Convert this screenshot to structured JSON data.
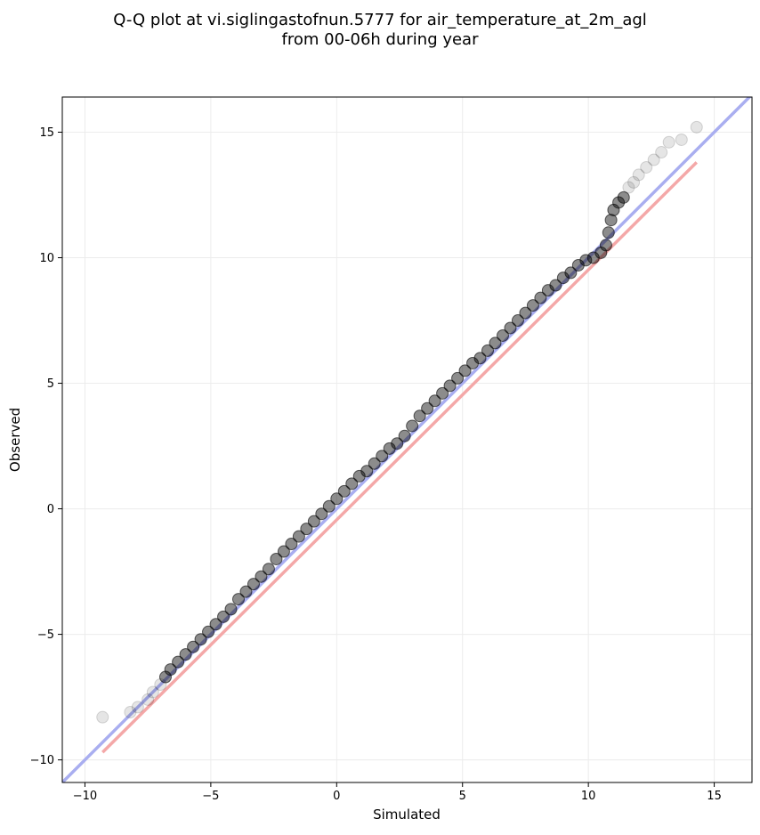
{
  "chart_data": {
    "type": "scatter",
    "title_lines": [
      "Q-Q plot at vi.siglingastofnun.5777 for air_temperature_at_2m_agl",
      "from 00-06h during year"
    ],
    "xlabel": "Simulated",
    "ylabel": "Observed",
    "xlim": [
      -10.9,
      16.5
    ],
    "ylim": [
      -10.9,
      16.4
    ],
    "xticks": [
      -10,
      -5,
      0,
      5,
      10,
      15
    ],
    "yticks": [
      -10,
      -5,
      0,
      5,
      10,
      15
    ],
    "xtick_labels": [
      "−10",
      "−5",
      "0",
      "5",
      "10",
      "15"
    ],
    "ytick_labels": [
      "−10",
      "−5",
      "0",
      "5",
      "10",
      "15"
    ],
    "grid": true,
    "reference_lines": [
      {
        "color": "#a9aef0",
        "x": [
          -10.9,
          16.5
        ],
        "y": [
          -10.9,
          16.5
        ]
      },
      {
        "color": "#f4a8a8",
        "x": [
          -9.3,
          14.3
        ],
        "y": [
          -9.7,
          13.8
        ]
      }
    ],
    "series": [
      {
        "color": "#000000",
        "x": [
          -9.3,
          -8.2,
          -7.9,
          -7.5,
          -7.3,
          -7.0,
          -6.8,
          -6.6,
          -6.3,
          -6.0,
          -5.7,
          -5.4,
          -5.1,
          -4.8,
          -4.5,
          -4.2,
          -3.9,
          -3.6,
          -3.3,
          -3.0,
          -2.7,
          -2.4,
          -2.1,
          -1.8,
          -1.5,
          -1.2,
          -0.9,
          -0.6,
          -0.3,
          0.0,
          0.3,
          0.6,
          0.9,
          1.2,
          1.5,
          1.8,
          2.1,
          2.4,
          2.7,
          3.0,
          3.3,
          3.6,
          3.9,
          4.2,
          4.5,
          4.8,
          5.1,
          5.4,
          5.7,
          6.0,
          6.3,
          6.6,
          6.9,
          7.2,
          7.5,
          7.8,
          8.1,
          8.4,
          8.7,
          9.0,
          9.3,
          9.6,
          9.9,
          10.2,
          10.5,
          10.7,
          10.8,
          10.9,
          11.0,
          11.2,
          11.4,
          11.6,
          11.8,
          12.0,
          12.3,
          12.6,
          12.9,
          13.2,
          13.7,
          14.3
        ],
        "y": [
          -8.3,
          -8.1,
          -7.9,
          -7.6,
          -7.3,
          -7.0,
          -6.7,
          -6.4,
          -6.1,
          -5.8,
          -5.5,
          -5.2,
          -4.9,
          -4.6,
          -4.3,
          -4.0,
          -3.6,
          -3.3,
          -3.0,
          -2.7,
          -2.4,
          -2.0,
          -1.7,
          -1.4,
          -1.1,
          -0.8,
          -0.5,
          -0.2,
          0.1,
          0.4,
          0.7,
          1.0,
          1.3,
          1.5,
          1.8,
          2.1,
          2.4,
          2.6,
          2.9,
          3.3,
          3.7,
          4.0,
          4.3,
          4.6,
          4.9,
          5.2,
          5.5,
          5.8,
          6.0,
          6.3,
          6.6,
          6.9,
          7.2,
          7.5,
          7.8,
          8.1,
          8.4,
          8.7,
          8.9,
          9.2,
          9.4,
          9.7,
          9.9,
          10.0,
          10.2,
          10.5,
          11.0,
          11.5,
          11.9,
          12.2,
          12.4,
          12.8,
          13.0,
          13.3,
          13.6,
          13.9,
          14.2,
          14.6,
          14.7,
          15.2
        ]
      }
    ]
  }
}
